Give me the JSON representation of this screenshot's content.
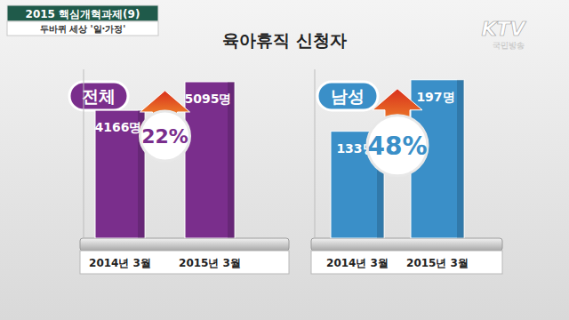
{
  "header": {
    "badge": "2015 핵심개혁과제(9)",
    "subtitle": "두바퀴 세상 '일·가정'",
    "logo": "KTV",
    "logo_sub": "국민방송"
  },
  "title": "육아휴직 신청자",
  "chart_data": [
    {
      "type": "bar",
      "title": "전체",
      "categories": [
        "2014년 3월",
        "2015년 3월"
      ],
      "values": [
        4166,
        5095
      ],
      "value_labels": [
        "4166명",
        "5095명"
      ],
      "data_labels": true,
      "annotation": "22%",
      "color": "#7a2e8c",
      "ylim": [
        0,
        5500
      ],
      "tick_labels": false,
      "grid": false
    },
    {
      "type": "bar",
      "title": "남성",
      "categories": [
        "2014년 3월",
        "2015년 3월"
      ],
      "values": [
        133,
        197
      ],
      "value_labels": [
        "133명",
        "197명"
      ],
      "data_labels": true,
      "annotation": "48%",
      "color": "#3a8fc8",
      "ylim": [
        0,
        210
      ],
      "tick_labels": false,
      "grid": false
    }
  ]
}
